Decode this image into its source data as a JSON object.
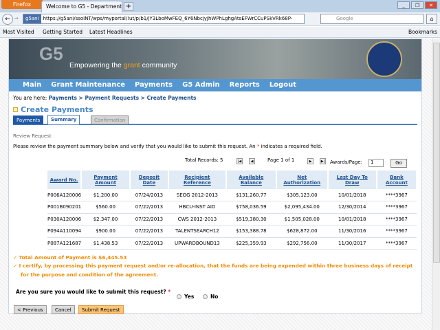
{
  "browser": {
    "menu": "Firefox",
    "tab_title": "Welcome to G5 - Department of Educati...",
    "new_tab": "+",
    "url_identity": "g5ani",
    "url": "https://g5ani/ssoINT/wps/myportal/!ut/p/b1/jY3LboMwFEQ_6Y6NbcjyJhWPhLghgAtsEFWrCCuPSkVRk68P-",
    "search_placeholder": "Google",
    "bookmarks": [
      "Most Visited",
      "Getting Started",
      "Latest Headlines"
    ],
    "bookmarks_menu": "Bookmarks"
  },
  "banner": {
    "logo": "G5",
    "tagline_pre": "Empowering the ",
    "tagline_hl": "grant",
    "tagline_post": " community"
  },
  "nav": [
    "Main",
    "Grant Maintenance",
    "Payments",
    "G5 Admin",
    "Reports",
    "Logout"
  ],
  "breadcrumb": {
    "prefix": "You are here: ",
    "path": "Payments > Payment Requests > Create Payments"
  },
  "page_title": "Create Payments",
  "tabs": [
    "Payments",
    "Summary",
    "Confirmation"
  ],
  "section": "Review Request",
  "instructions_pre": "Please review the payment summary below and verify that you would like to submit this request. An ",
  "instructions_req": "*",
  "instructions_post": " indicates a required field.",
  "pager": {
    "total": "Total Records: 5",
    "page": "Page 1 of 1",
    "per_page_label": "Awards/Page:",
    "per_page": "1",
    "go": "Go"
  },
  "table": {
    "headers": [
      "Award No.",
      "Payment Amount",
      "Deposit Date",
      "Recipient Reference",
      "Available Balance",
      "Net Authorization",
      "Last Day To Draw",
      "Bank Account"
    ],
    "rows": [
      [
        "P006A120006",
        "$1,200.00",
        "07/24/2013",
        "SEOG 2012-2013",
        "$131,260.77",
        "$305,123.00",
        "10/01/2018",
        "****3967"
      ],
      [
        "P001B090201",
        "$560.00",
        "07/22/2013",
        "HBCU-INST AID",
        "$758,036.59",
        "$2,095,434.00",
        "12/30/2014",
        "****3967"
      ],
      [
        "P030A120006",
        "$2,347.00",
        "07/22/2013",
        "CWS 2012-2013",
        "$519,380.30",
        "$1,505,028.00",
        "10/01/2018",
        "****3967"
      ],
      [
        "P094A110094",
        "$900.00",
        "07/22/2013",
        "TALENTSEARCH12",
        "$153,388.78",
        "$628,872.00",
        "11/30/2016",
        "****3967"
      ],
      [
        "P087A121687",
        "$1,438.53",
        "07/22/2013",
        "UPWARDBOUND13",
        "$225,359.93",
        "$292,756.00",
        "11/30/2017",
        "****3967"
      ]
    ]
  },
  "messages": [
    "Total Amount of Payment is $6,445.53",
    "I certify, by processing this payment request and/or re-allocation, that the funds are being expended within three business days of receipt",
    "for the purpose and condition of the agreement."
  ],
  "question": "Are you sure you would like to submit this request?",
  "question_req": "*",
  "options": [
    "Yes",
    "No"
  ],
  "buttons": {
    "previous": "< Previous",
    "cancel": "Cancel",
    "submit": "Submit Request"
  }
}
